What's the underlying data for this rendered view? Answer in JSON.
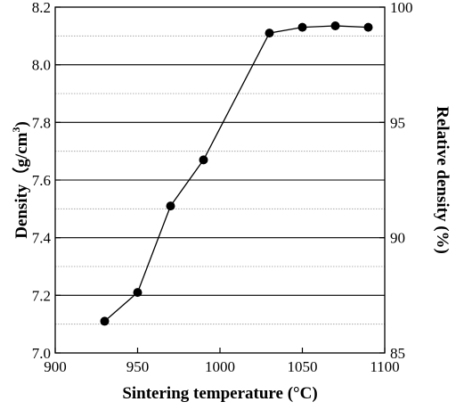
{
  "chart_data": {
    "type": "line",
    "xlabel": "Sintering temperature (°C)",
    "ylabel": "Density（g/cm",
    "ylabel_sup": "3",
    "ylabel_close": ")",
    "y2label": "Relative density (%)",
    "xlim": [
      900,
      1100
    ],
    "ylim": [
      7.0,
      8.2
    ],
    "y2lim": [
      85,
      100
    ],
    "x_ticks": [
      "900",
      "950",
      "1000",
      "1050",
      "1100"
    ],
    "y_ticks": [
      "7.0",
      "7.2",
      "7.4",
      "7.6",
      "7.8",
      "8.0",
      "8.2"
    ],
    "y2_ticks": [
      "85",
      "90",
      "95",
      "100"
    ],
    "grid": "horizontal solid at major left ticks, dotted at minor ticks",
    "legend": "none",
    "series": [
      {
        "x": [
          930,
          950,
          970,
          990,
          1030,
          1050,
          1070,
          1090
        ],
        "y": [
          7.11,
          7.21,
          7.51,
          7.67,
          8.11,
          8.13,
          8.135,
          8.13
        ]
      }
    ]
  }
}
